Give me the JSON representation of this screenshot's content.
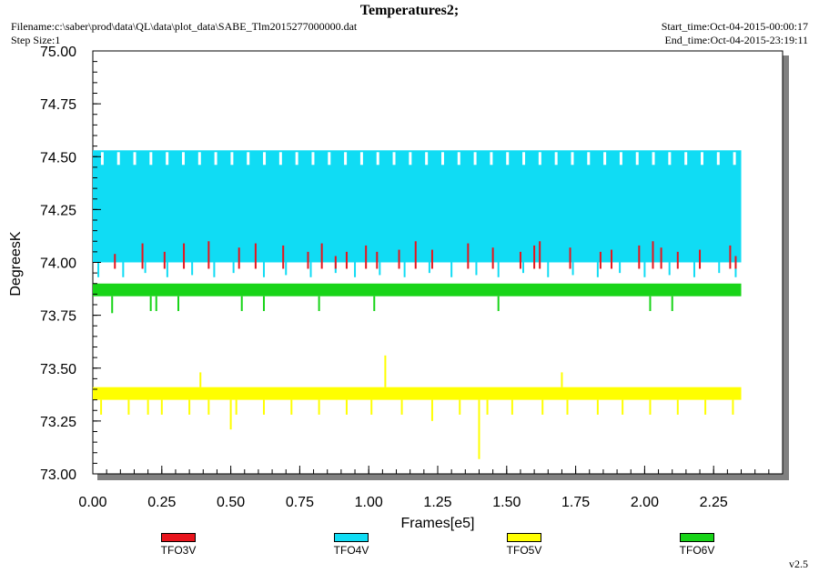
{
  "header": {
    "title": "Temperatures2;",
    "filename": "Filename:c:\\saber\\prod\\data\\QL\\data\\plot_data\\SABE_Tlm2015277000000.dat",
    "step_size": "Step Size:1",
    "start_time": "Start_time:Oct-04-2015-00:00:17",
    "end_time": "End_time:Oct-04-2015-23:19:11",
    "version": "v2.5"
  },
  "chart_data": {
    "type": "line",
    "title": "Temperatures2;",
    "xlabel": "Frames[e5]",
    "ylabel": "DegreesK",
    "xlim": [
      0.0,
      2.5
    ],
    "ylim": [
      73.0,
      75.0
    ],
    "x_ticks": [
      "0.00",
      "0.25",
      "0.50",
      "0.75",
      "1.00",
      "1.25",
      "1.50",
      "1.75",
      "2.00",
      "2.25"
    ],
    "y_ticks": [
      "73.00",
      "73.25",
      "73.50",
      "73.75",
      "74.00",
      "74.25",
      "74.50",
      "74.75",
      "75.00"
    ],
    "x_data_range": [
      0.0,
      2.35
    ],
    "grid": false,
    "legend_position": "bottom",
    "series": [
      {
        "name": "TFO4V",
        "color": "#10dcf4",
        "band": [
          73.93,
          74.53
        ],
        "typical_low": 74.0,
        "spikes_down": [
          [
            0.02,
            73.93
          ],
          [
            0.11,
            73.93
          ],
          [
            0.19,
            73.95
          ],
          [
            0.27,
            73.93
          ],
          [
            0.36,
            73.94
          ],
          [
            0.44,
            73.93
          ],
          [
            0.51,
            73.95
          ],
          [
            0.62,
            73.93
          ],
          [
            0.7,
            73.94
          ],
          [
            0.79,
            73.93
          ],
          [
            0.88,
            73.95
          ],
          [
            0.95,
            73.93
          ],
          [
            1.04,
            73.94
          ],
          [
            1.13,
            73.93
          ],
          [
            1.22,
            73.95
          ],
          [
            1.3,
            73.93
          ],
          [
            1.39,
            73.94
          ],
          [
            1.47,
            73.93
          ],
          [
            1.56,
            73.95
          ],
          [
            1.65,
            73.93
          ],
          [
            1.74,
            73.94
          ],
          [
            1.83,
            73.93
          ],
          [
            1.91,
            73.95
          ],
          [
            2.0,
            73.93
          ],
          [
            2.09,
            73.94
          ],
          [
            2.18,
            73.93
          ],
          [
            2.27,
            73.95
          ],
          [
            2.33,
            73.93
          ]
        ]
      },
      {
        "name": "TFO3V",
        "color": "#e8141c",
        "spikes": [
          [
            0.08,
            74.04
          ],
          [
            0.18,
            74.09
          ],
          [
            0.26,
            74.05
          ],
          [
            0.33,
            74.09
          ],
          [
            0.42,
            74.1
          ],
          [
            0.53,
            74.07
          ],
          [
            0.59,
            74.09
          ],
          [
            0.69,
            74.08
          ],
          [
            0.78,
            74.05
          ],
          [
            0.83,
            74.09
          ],
          [
            0.88,
            74.03
          ],
          [
            0.92,
            74.05
          ],
          [
            0.99,
            74.08
          ],
          [
            1.03,
            74.05
          ],
          [
            1.11,
            74.06
          ],
          [
            1.17,
            74.1
          ],
          [
            1.23,
            74.06
          ],
          [
            1.36,
            74.09
          ],
          [
            1.45,
            74.07
          ],
          [
            1.55,
            74.05
          ],
          [
            1.6,
            74.08
          ],
          [
            1.62,
            74.1
          ],
          [
            1.73,
            74.07
          ],
          [
            1.84,
            74.05
          ],
          [
            1.88,
            74.06
          ],
          [
            1.98,
            74.08
          ],
          [
            2.03,
            74.1
          ],
          [
            2.06,
            74.07
          ],
          [
            2.12,
            74.05
          ],
          [
            2.2,
            74.06
          ],
          [
            2.31,
            74.08
          ],
          [
            2.33,
            74.03
          ]
        ]
      },
      {
        "name": "TFO6V",
        "color": "#18d418",
        "band": [
          73.84,
          73.9
        ],
        "spikes_down": [
          [
            0.07,
            73.76
          ],
          [
            0.21,
            73.77
          ],
          [
            0.23,
            73.77
          ],
          [
            0.31,
            73.77
          ],
          [
            0.54,
            73.77
          ],
          [
            0.62,
            73.77
          ],
          [
            0.82,
            73.77
          ],
          [
            1.02,
            73.77
          ],
          [
            1.47,
            73.77
          ],
          [
            2.02,
            73.77
          ],
          [
            2.1,
            73.77
          ]
        ]
      },
      {
        "name": "TFO5V",
        "color": "#ffff00",
        "band": [
          73.35,
          73.41
        ],
        "spikes_up": [
          [
            0.39,
            73.48
          ],
          [
            1.06,
            73.56
          ],
          [
            1.7,
            73.48
          ]
        ],
        "spikes_down": [
          [
            0.03,
            73.28
          ],
          [
            0.13,
            73.28
          ],
          [
            0.2,
            73.28
          ],
          [
            0.25,
            73.28
          ],
          [
            0.35,
            73.28
          ],
          [
            0.42,
            73.28
          ],
          [
            0.5,
            73.21
          ],
          [
            0.52,
            73.28
          ],
          [
            0.62,
            73.28
          ],
          [
            0.72,
            73.28
          ],
          [
            0.82,
            73.28
          ],
          [
            0.92,
            73.28
          ],
          [
            1.01,
            73.28
          ],
          [
            1.12,
            73.28
          ],
          [
            1.23,
            73.25
          ],
          [
            1.33,
            73.28
          ],
          [
            1.4,
            73.07
          ],
          [
            1.43,
            73.28
          ],
          [
            1.52,
            73.28
          ],
          [
            1.63,
            73.28
          ],
          [
            1.72,
            73.28
          ],
          [
            1.83,
            73.28
          ],
          [
            1.92,
            73.28
          ],
          [
            2.02,
            73.28
          ],
          [
            2.12,
            73.28
          ],
          [
            2.22,
            73.28
          ],
          [
            2.32,
            73.28
          ]
        ]
      }
    ]
  }
}
